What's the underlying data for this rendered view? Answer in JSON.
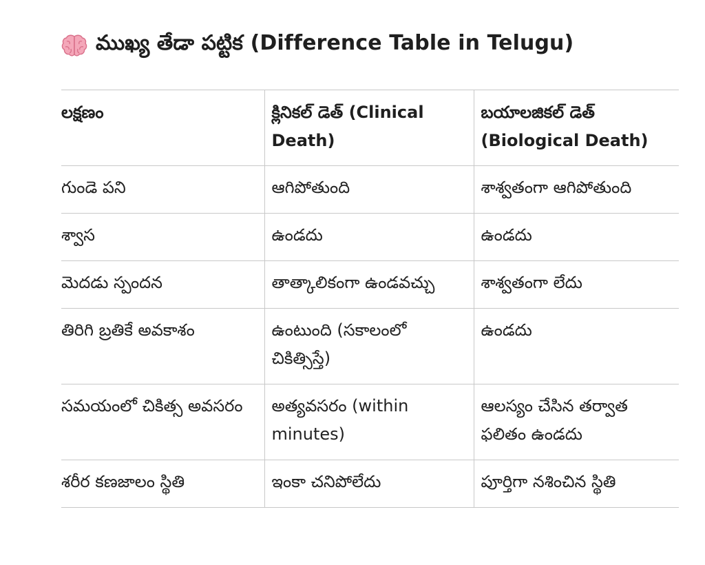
{
  "heading": {
    "icon": "brain-icon",
    "title": "ముఖ్య తేడా పట్టిక (Difference Table in Telugu)"
  },
  "table": {
    "headers": [
      "లక్షణం",
      "క్లినికల్ డెత్ (Clinical Death)",
      "బయాలజికల్ డెత్ (Biological Death)"
    ],
    "rows": [
      [
        "గుండె పని",
        "ఆగిపోతుంది",
        "శాశ్వతంగా ఆగిపోతుంది"
      ],
      [
        "శ్వాస",
        "ఉండదు",
        "ఉండదు"
      ],
      [
        "మెదడు స్పందన",
        "తాత్కాలికంగా ఉండవచ్చు",
        "శాశ్వతంగా లేదు"
      ],
      [
        "తిరిగి బ్రతికే అవకాశం",
        "ఉంటుంది (సకాలంలో చికిత్సిస్తే)",
        "ఉండదు"
      ],
      [
        "సమయంలో చికిత్స అవసరం",
        "అత్యవసరం (within minutes)",
        "ఆలస్యం చేసిన తర్వాత ఫలితం ఉండదు"
      ],
      [
        "శరీర కణజాలం స్థితి",
        "ఇంకా చనిపోలేదు",
        "పూర్తిగా నశించిన స్థితి"
      ]
    ]
  }
}
